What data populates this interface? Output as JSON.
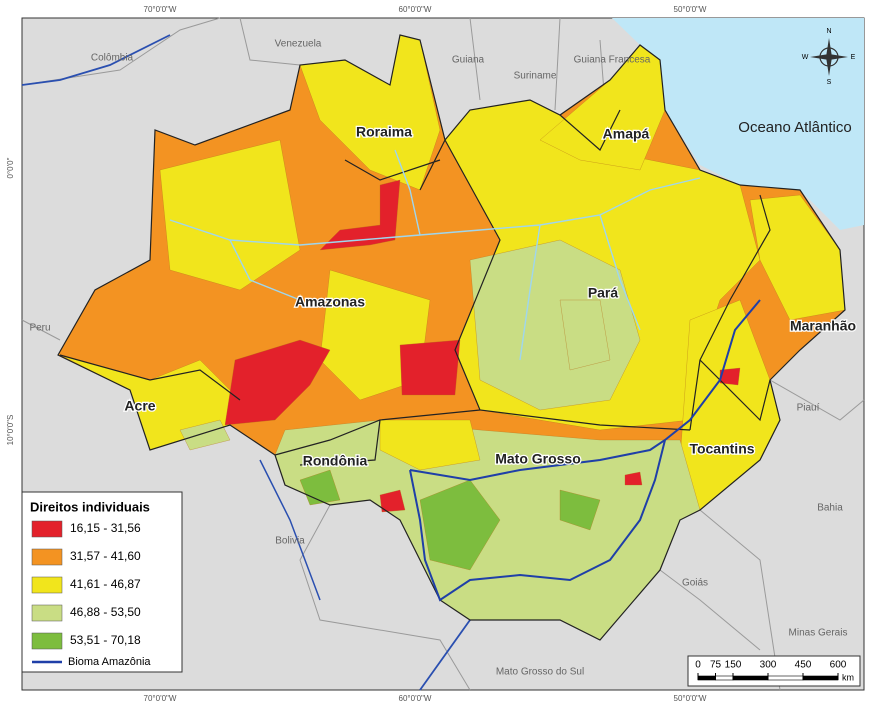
{
  "map": {
    "graticule": {
      "top": [
        "70°0'0\"W",
        "60°0'0\"W",
        "50°0'0\"W"
      ],
      "bottom": [
        "70°0'0\"W",
        "60°0'0\"W",
        "50°0'0\"W"
      ],
      "left": [
        "0°0'0\"",
        "10°0'0\"S"
      ]
    },
    "countries": [
      "Colômbia",
      "Venezuela",
      "Guiana",
      "Suriname",
      "Guiana Francesa",
      "Peru",
      "Bolivia"
    ],
    "other_states": [
      "Piauí",
      "Bahia",
      "Goiás",
      "Minas Gerais",
      "Mato Grosso do Sul"
    ],
    "ocean": "Oceano Atlântico",
    "states": [
      "Roraima",
      "Amapá",
      "Amazonas",
      "Pará",
      "Maranhão",
      "Acre",
      "Rondônia",
      "Mato Grosso",
      "Tocantins"
    ],
    "compass": [
      "N",
      "E",
      "S",
      "W"
    ],
    "legend": {
      "title": "Direitos individuais",
      "classes": [
        {
          "label": "16,15 - 31,56",
          "color": "#e3212b"
        },
        {
          "label": "31,57 - 41,60",
          "color": "#f39322"
        },
        {
          "label": "41,61 - 46,87",
          "color": "#f1e51c"
        },
        {
          "label": "46,88 - 53,50",
          "color": "#c9dd84"
        },
        {
          "label": "53,51 - 70,18",
          "color": "#7dbd3e"
        }
      ],
      "line": "Bioma Amazônia",
      "line_color": "#1f3fa8"
    },
    "scale": {
      "ticks": [
        0,
        75,
        150,
        300,
        450,
        600
      ],
      "unit": "km"
    }
  }
}
